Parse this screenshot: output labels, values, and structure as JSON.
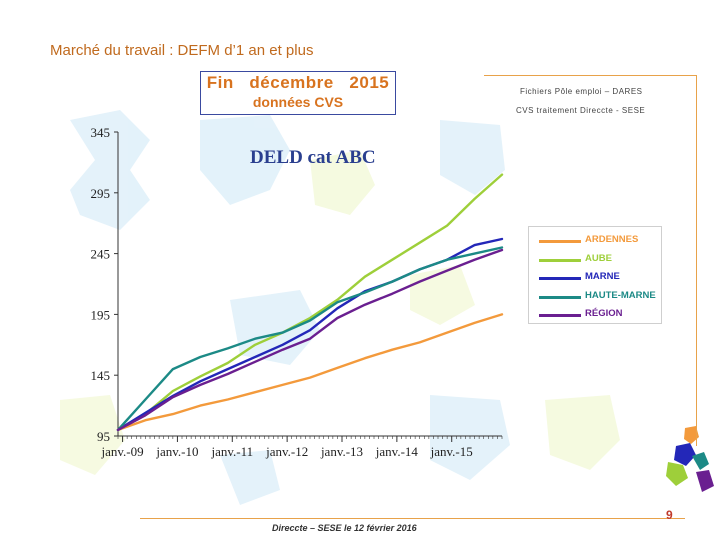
{
  "slide": {
    "title": "Marché du travail : DEFM d’1 an et plus",
    "subtitle_line1": "Fin   décembre   2015",
    "subtitle_line2": "données CVS",
    "source_line1": "Fichiers Pôle emploi – DARES",
    "source_line2": "CVS traitement Direccte - SESE",
    "footer": "Direccte – SESE le 12 février 2016",
    "page_number": "9"
  },
  "colors": {
    "ARDENNES": "#f39a3c",
    "AUBE": "#9ecf3a",
    "MARNE": "#2327b8",
    "HAUTE-MARNE": "#1c8a86",
    "RÉGION": "#6a1f90"
  },
  "chart_data": {
    "type": "line",
    "title": "DELD cat ABC",
    "x_tick_labels": [
      "janv.-09",
      "janv.-10",
      "janv.-11",
      "janv.-12",
      "janv.-13",
      "janv.-14",
      "janv.-15"
    ],
    "x": [
      "2008-12",
      "2009-06",
      "2009-12",
      "2010-06",
      "2010-12",
      "2011-06",
      "2011-12",
      "2012-06",
      "2012-12",
      "2013-06",
      "2013-12",
      "2014-06",
      "2014-12",
      "2015-06",
      "2015-12"
    ],
    "ylim": [
      95,
      345
    ],
    "y_ticks": [
      95,
      145,
      195,
      245,
      295,
      345
    ],
    "series": [
      {
        "name": "ARDENNES",
        "values": [
          100,
          108,
          113,
          120,
          125,
          131,
          137,
          143,
          151,
          159,
          166,
          172,
          180,
          188,
          195
        ]
      },
      {
        "name": "AUBE",
        "values": [
          100,
          113,
          132,
          144,
          155,
          170,
          180,
          192,
          207,
          226,
          240,
          254,
          268,
          290,
          310
        ]
      },
      {
        "name": "MARNE",
        "values": [
          100,
          114,
          128,
          140,
          150,
          160,
          170,
          182,
          200,
          214,
          222,
          232,
          240,
          252,
          257
        ]
      },
      {
        "name": "HAUTE-MARNE",
        "values": [
          100,
          125,
          150,
          160,
          167,
          175,
          180,
          190,
          205,
          213,
          222,
          232,
          240,
          245,
          250
        ]
      },
      {
        "name": "RÉGION",
        "values": [
          100,
          112,
          127,
          137,
          146,
          156,
          166,
          175,
          192,
          203,
          212,
          222,
          231,
          240,
          248
        ]
      }
    ],
    "grid": false,
    "legend_position": "right"
  }
}
